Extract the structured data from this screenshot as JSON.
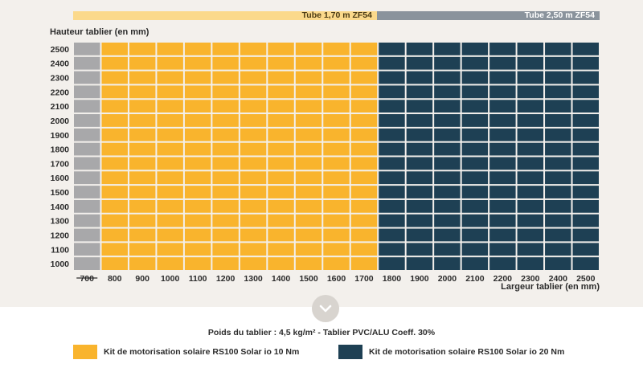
{
  "tubes": [
    {
      "label": "Tube 1,70 m ZF54"
    },
    {
      "label": "Tube 2,50 m ZF54"
    }
  ],
  "footer": {
    "info": "Poids du tablier : 4,5 kg/m²  -  Tablier PVC/ALU Coeff. 30%"
  },
  "colors": {
    "grey": "#a8a8aa",
    "yellow": "#f9b42d",
    "navy": "#1e4054"
  },
  "chart_data": {
    "type": "heatmap",
    "title": "",
    "xlabel": "Largeur tablier (en mm)",
    "ylabel": "Hauteur tablier (en mm)",
    "x": [
      "700",
      "800",
      "900",
      "1000",
      "1100",
      "1200",
      "1300",
      "1400",
      "1500",
      "1600",
      "1700",
      "1800",
      "1900",
      "2000",
      "2100",
      "2200",
      "2300",
      "2400",
      "2500"
    ],
    "y": [
      "1000",
      "1100",
      "1200",
      "1300",
      "1400",
      "1500",
      "1600",
      "1700",
      "1800",
      "1900",
      "2000",
      "2100",
      "2200",
      "2300",
      "2400",
      "2500"
    ],
    "x_crossed_out": [
      "700"
    ],
    "series": [
      {
        "name": "Kit de motorisation solaire RS100 Solar io 10 Nm",
        "x_range": [
          "800",
          "1700"
        ],
        "color": "#f9b42d"
      },
      {
        "name": "Kit de motorisation solaire RS100 Solar io 20 Nm",
        "x_range": [
          "1800",
          "2500"
        ],
        "color": "#1e4054"
      }
    ],
    "not_available": {
      "x": [
        "700"
      ],
      "color": "#a8a8aa"
    },
    "legend": "bottom"
  }
}
